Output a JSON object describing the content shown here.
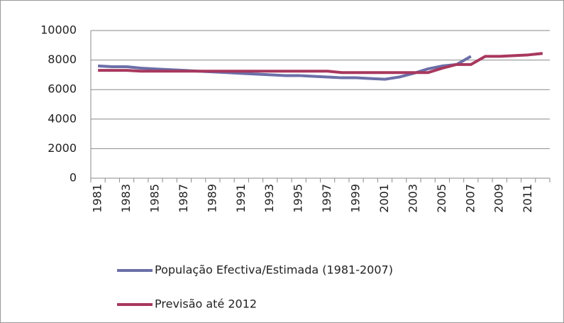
{
  "chart_data": {
    "type": "line",
    "categories": [
      "1981",
      null,
      "1983",
      null,
      "1985",
      null,
      "1987",
      null,
      "1989",
      null,
      "1991",
      null,
      "1993",
      null,
      "1995",
      null,
      "1997",
      null,
      "1999",
      null,
      "2001",
      null,
      "2003",
      null,
      "2005",
      null,
      "2007",
      null,
      "2009",
      null,
      "2011",
      null
    ],
    "series": [
      {
        "name": "População Efectiva/Estimada (1981-2007)",
        "color": "#6b6fa8",
        "values": [
          7600,
          7550,
          7550,
          7450,
          7400,
          7350,
          7300,
          7250,
          7200,
          7150,
          7100,
          7050,
          7000,
          6950,
          6950,
          6900,
          6850,
          6800,
          6800,
          6750,
          6700,
          6850,
          7100,
          7400,
          7600,
          7700,
          8250,
          null,
          null,
          null,
          null,
          null
        ]
      },
      {
        "name": "Previsão até 2012",
        "color": "#a8385e",
        "values": [
          7300,
          7300,
          7300,
          7250,
          7250,
          7250,
          7250,
          7250,
          7250,
          7250,
          7250,
          7250,
          7250,
          7250,
          7250,
          7250,
          7250,
          7150,
          7150,
          7150,
          7150,
          7150,
          7150,
          7150,
          7450,
          7700,
          7700,
          8250,
          8250,
          8300,
          8350,
          8450
        ]
      }
    ],
    "ylim": [
      0,
      10000
    ],
    "yticks": [
      0,
      2000,
      4000,
      6000,
      8000,
      10000
    ],
    "grid": true
  }
}
